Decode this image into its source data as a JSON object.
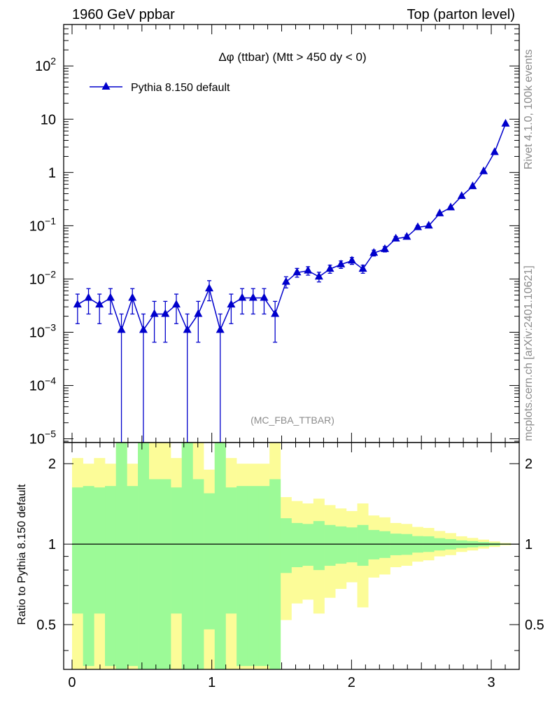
{
  "header": {
    "left": "1960 GeV ppbar",
    "right": "Top (parton level)"
  },
  "side_labels": {
    "rivet": "Rivet 4.1.0,  100k events",
    "mcplots": "mcplots.cern.ch [arXiv:2401.10621]"
  },
  "chart_data": [
    {
      "panel": "main",
      "type": "line",
      "title": "Δφ (ttbar) (Mtt > 450 dy < 0)",
      "analysis_tag": "(MC_FBA_TTBAR)",
      "xlabel": "",
      "ylabel": "",
      "yscale": "log",
      "xlim": [
        -0.06,
        3.2
      ],
      "ylim": [
        8.5e-06,
        600
      ],
      "ytick_labels": [
        {
          "value": 100,
          "label": "10^2"
        },
        {
          "value": 10,
          "label": "10"
        },
        {
          "value": 1,
          "label": "1"
        },
        {
          "value": 0.1,
          "label": "10^-1"
        },
        {
          "value": 0.01,
          "label": "10^-2"
        },
        {
          "value": 0.001,
          "label": "10^-3"
        },
        {
          "value": 0.0001,
          "label": "10^-4"
        },
        {
          "value": 1e-05,
          "label": "10^-5"
        }
      ],
      "color": "#0000cc",
      "series": [
        {
          "name": "Pythia 8.150 default",
          "marker": "triangle",
          "points": [
            {
              "x": 0.0393,
              "y": 0.0033,
              "lo": 0.00145,
              "hi": 0.0052
            },
            {
              "x": 0.1178,
              "y": 0.0044,
              "lo": 0.0022,
              "hi": 0.0066
            },
            {
              "x": 0.1963,
              "y": 0.0033,
              "lo": 0.00145,
              "hi": 0.0052
            },
            {
              "x": 0.2749,
              "y": 0.0044,
              "lo": 0.0022,
              "hi": 0.0066
            },
            {
              "x": 0.3534,
              "y": 0.0011,
              "lo": 1e-06,
              "hi": 0.0022
            },
            {
              "x": 0.432,
              "y": 0.0044,
              "lo": 0.0022,
              "hi": 0.0066
            },
            {
              "x": 0.5105,
              "y": 0.0011,
              "lo": 1e-06,
              "hi": 0.0022
            },
            {
              "x": 0.589,
              "y": 0.0022,
              "lo": 0.00065,
              "hi": 0.0038
            },
            {
              "x": 0.6676,
              "y": 0.0022,
              "lo": 0.00065,
              "hi": 0.0038
            },
            {
              "x": 0.7461,
              "y": 0.0033,
              "lo": 0.00145,
              "hi": 0.0052
            },
            {
              "x": 0.8247,
              "y": 0.0011,
              "lo": 1e-06,
              "hi": 0.0022
            },
            {
              "x": 0.9032,
              "y": 0.0022,
              "lo": 0.00065,
              "hi": 0.0038
            },
            {
              "x": 0.9817,
              "y": 0.0066,
              "lo": 0.0039,
              "hi": 0.0093
            },
            {
              "x": 1.0603,
              "y": 0.0011,
              "lo": 1e-06,
              "hi": 0.0022
            },
            {
              "x": 1.1388,
              "y": 0.0033,
              "lo": 0.00145,
              "hi": 0.0052
            },
            {
              "x": 1.2174,
              "y": 0.0044,
              "lo": 0.0022,
              "hi": 0.0066
            },
            {
              "x": 1.2959,
              "y": 0.0044,
              "lo": 0.0022,
              "hi": 0.0066
            },
            {
              "x": 1.3744,
              "y": 0.0044,
              "lo": 0.0022,
              "hi": 0.0066
            },
            {
              "x": 1.453,
              "y": 0.0022,
              "lo": 0.00065,
              "hi": 0.0038
            },
            {
              "x": 1.5315,
              "y": 0.0088,
              "lo": 0.0068,
              "hi": 0.011
            },
            {
              "x": 1.6101,
              "y": 0.0132,
              "lo": 0.0108,
              "hi": 0.0158
            },
            {
              "x": 1.6886,
              "y": 0.0143,
              "lo": 0.0118,
              "hi": 0.017
            },
            {
              "x": 1.7671,
              "y": 0.011,
              "lo": 0.0088,
              "hi": 0.0134
            },
            {
              "x": 1.8457,
              "y": 0.0154,
              "lo": 0.0128,
              "hi": 0.0182
            },
            {
              "x": 1.9242,
              "y": 0.0187,
              "lo": 0.0158,
              "hi": 0.0218
            },
            {
              "x": 2.0028,
              "y": 0.022,
              "lo": 0.0188,
              "hi": 0.0254
            },
            {
              "x": 2.0813,
              "y": 0.0154,
              "lo": 0.0128,
              "hi": 0.0182
            },
            {
              "x": 2.1598,
              "y": 0.0308,
              "lo": 0.027,
              "hi": 0.0348
            },
            {
              "x": 2.2384,
              "y": 0.0363,
              "lo": 0.0322,
              "hi": 0.0406
            },
            {
              "x": 2.3169,
              "y": 0.0572,
              "lo": 0.052,
              "hi": 0.0626
            },
            {
              "x": 2.3955,
              "y": 0.0616,
              "lo": 0.0562,
              "hi": 0.0672
            },
            {
              "x": 2.474,
              "y": 0.0935,
              "lo": 0.087,
              "hi": 0.1002
            },
            {
              "x": 2.5525,
              "y": 0.1,
              "lo": 0.0935,
              "hi": 0.107
            },
            {
              "x": 2.6311,
              "y": 0.17,
              "lo": 0.161,
              "hi": 0.179
            },
            {
              "x": 2.7096,
              "y": 0.22,
              "lo": 0.21,
              "hi": 0.23
            },
            {
              "x": 2.7882,
              "y": 0.36,
              "lo": 0.348,
              "hi": 0.372
            },
            {
              "x": 2.8667,
              "y": 0.55,
              "lo": 0.535,
              "hi": 0.565
            },
            {
              "x": 2.9452,
              "y": 1.05,
              "lo": 1.03,
              "hi": 1.07
            },
            {
              "x": 3.0238,
              "y": 2.4,
              "lo": 2.37,
              "hi": 2.43
            },
            {
              "x": 3.1023,
              "y": 8.2,
              "lo": 8.14,
              "hi": 8.26
            }
          ]
        }
      ]
    },
    {
      "panel": "ratio",
      "type": "area",
      "ylabel": "Ratio to Pythia 8.150 default",
      "xlim": [
        -0.06,
        3.2
      ],
      "ylim": [
        0.34,
        2.4
      ],
      "yscale": "log",
      "x_tick_labels": [
        "0",
        "1",
        "2",
        "3"
      ],
      "y_tick_labels": [
        {
          "value": 2,
          "label": "2"
        },
        {
          "value": 1,
          "label": "1"
        },
        {
          "value": 0.5,
          "label": "0.5"
        }
      ],
      "reference_line": 1,
      "bins_width": 0.0785,
      "bins_first_x": 0,
      "band_colors": {
        "inner": "#9cfa97",
        "outer": "#fcfc98"
      },
      "green_band": [
        [
          0.55,
          1.63
        ],
        [
          0.35,
          1.65
        ],
        [
          0.55,
          1.63
        ],
        [
          0.35,
          1.65
        ],
        [
          0.1,
          2.6
        ],
        [
          0.35,
          1.65
        ],
        [
          0.1,
          2.6
        ],
        [
          0.25,
          1.75
        ],
        [
          0.25,
          1.75
        ],
        [
          0.55,
          1.63
        ],
        [
          0.1,
          2.6
        ],
        [
          0.25,
          1.75
        ],
        [
          0.48,
          1.55
        ],
        [
          0.1,
          2.6
        ],
        [
          0.55,
          1.63
        ],
        [
          0.35,
          1.65
        ],
        [
          0.35,
          1.65
        ],
        [
          0.35,
          1.65
        ],
        [
          0.25,
          1.75
        ],
        [
          0.78,
          1.25
        ],
        [
          0.82,
          1.2
        ],
        [
          0.83,
          1.19
        ],
        [
          0.8,
          1.22
        ],
        [
          0.83,
          1.18
        ],
        [
          0.845,
          1.165
        ],
        [
          0.855,
          1.155
        ],
        [
          0.83,
          1.18
        ],
        [
          0.877,
          1.13
        ],
        [
          0.888,
          1.118
        ],
        [
          0.909,
          1.095
        ],
        [
          0.912,
          1.091
        ],
        [
          0.93,
          1.072
        ],
        [
          0.935,
          1.07
        ],
        [
          0.947,
          1.053
        ],
        [
          0.955,
          1.045
        ],
        [
          0.967,
          1.033
        ],
        [
          0.973,
          1.027
        ],
        [
          0.981,
          1.019
        ],
        [
          0.988,
          1.012
        ],
        [
          0.995,
          1.005
        ]
      ],
      "yellow_band": [
        [
          0.1,
          2.1
        ],
        [
          0.1,
          2.0
        ],
        [
          0.1,
          2.1
        ],
        [
          0.1,
          2.0
        ],
        [
          0.1,
          2.6
        ],
        [
          0.1,
          2.0
        ],
        [
          0.1,
          2.6
        ],
        [
          0.1,
          2.6
        ],
        [
          0.1,
          2.6
        ],
        [
          0.1,
          2.1
        ],
        [
          0.1,
          2.6
        ],
        [
          0.1,
          2.6
        ],
        [
          0.1,
          1.9
        ],
        [
          0.1,
          2.6
        ],
        [
          0.1,
          2.1
        ],
        [
          0.1,
          2.0
        ],
        [
          0.1,
          2.0
        ],
        [
          0.1,
          2.0
        ],
        [
          0.1,
          2.6
        ],
        [
          0.52,
          1.5
        ],
        [
          0.6,
          1.45
        ],
        [
          0.62,
          1.42
        ],
        [
          0.55,
          1.48
        ],
        [
          0.63,
          1.4
        ],
        [
          0.68,
          1.36
        ],
        [
          0.72,
          1.33
        ],
        [
          0.58,
          1.42
        ],
        [
          0.75,
          1.28
        ],
        [
          0.77,
          1.26
        ],
        [
          0.82,
          1.2
        ],
        [
          0.83,
          1.19
        ],
        [
          0.86,
          1.16
        ],
        [
          0.87,
          1.15
        ],
        [
          0.9,
          1.12
        ],
        [
          0.91,
          1.1
        ],
        [
          0.935,
          1.07
        ],
        [
          0.947,
          1.055
        ],
        [
          0.962,
          1.04
        ],
        [
          0.976,
          1.024
        ],
        [
          0.99,
          1.01
        ]
      ]
    }
  ]
}
